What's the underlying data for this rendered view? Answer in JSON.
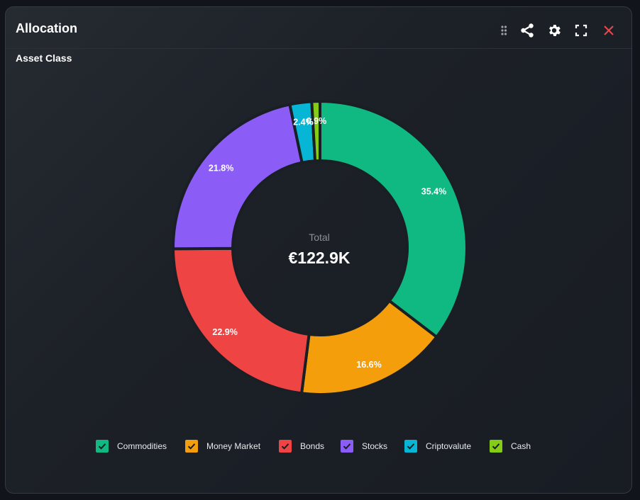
{
  "window": {
    "title": "Allocation",
    "subtitle": "Asset Class",
    "toolbar": [
      {
        "icon": "drag-handle-icon"
      },
      {
        "icon": "share-icon"
      },
      {
        "icon": "gear-icon"
      },
      {
        "icon": "fullscreen-icon"
      },
      {
        "icon": "close-icon",
        "color": "#e5484d"
      }
    ]
  },
  "center": {
    "label": "Total",
    "value": "€122.9K"
  },
  "legend": [
    {
      "label": "Commodities",
      "color": "#10b981",
      "checked": true
    },
    {
      "label": "Money Market",
      "color": "#f59e0b",
      "checked": true
    },
    {
      "label": "Bonds",
      "color": "#ef4444",
      "checked": true
    },
    {
      "label": "Stocks",
      "color": "#8b5cf6",
      "checked": true
    },
    {
      "label": "Criptovalute",
      "color": "#06b6d4",
      "checked": true
    },
    {
      "label": "Cash",
      "color": "#84cc16",
      "checked": true
    }
  ],
  "chart_data": {
    "type": "pie",
    "variant": "donut",
    "title": "Allocation",
    "subtitle": "Asset Class",
    "categories": [
      "Commodities",
      "Money Market",
      "Bonds",
      "Stocks",
      "Criptovalute",
      "Cash"
    ],
    "values": [
      35.4,
      16.6,
      22.9,
      21.8,
      2.4,
      0.9
    ],
    "labels": [
      "35.4%",
      "16.6%",
      "22.9%",
      "21.8%",
      "2.4%",
      "0.9%"
    ],
    "colors": [
      "#10b981",
      "#f59e0b",
      "#ef4444",
      "#8b5cf6",
      "#06b6d4",
      "#84cc16"
    ],
    "center_text": {
      "label": "Total",
      "value": "€122.9K"
    },
    "start_angle": "12 o'clock, clockwise",
    "legend_position": "bottom"
  }
}
